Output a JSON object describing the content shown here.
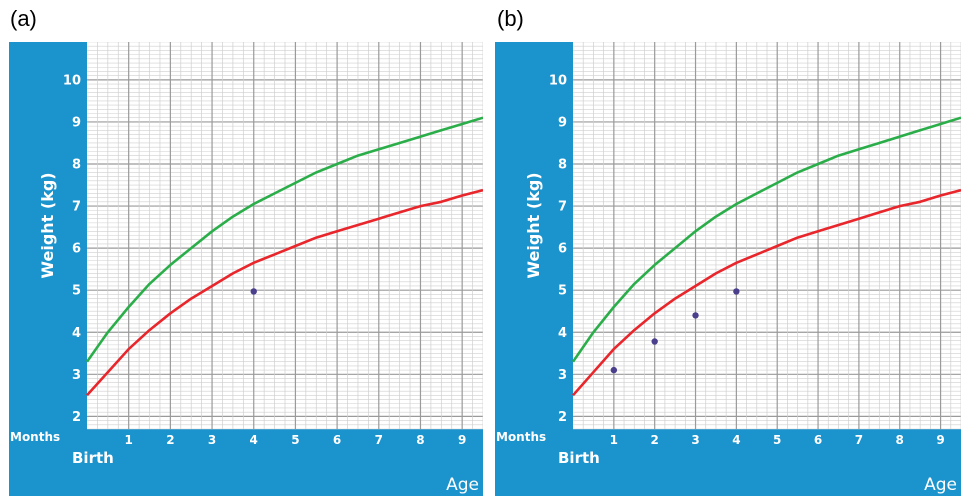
{
  "panels": [
    {
      "label": "(a)",
      "y_axis_label": "Weight (kg)",
      "months_label": "Months",
      "birth_label": "Birth",
      "age_label": "Age",
      "colors": {
        "frame": "#1b93cc",
        "green": "#2bae4a",
        "red": "#e8262b",
        "point": "#4a3f8c"
      }
    },
    {
      "label": "(b)",
      "y_axis_label": "Weight (kg)",
      "months_label": "Months",
      "birth_label": "Birth",
      "age_label": "Age",
      "colors": {
        "frame": "#1b93cc",
        "green": "#2bae4a",
        "red": "#e8262b",
        "point": "#4a3f8c"
      }
    }
  ],
  "chart_data": [
    {
      "type": "line",
      "panel": "a",
      "xlabel": "Age",
      "ylabel": "Weight (kg)",
      "xlim": [
        0,
        9.5
      ],
      "ylim": [
        1.7,
        10.9
      ],
      "x_ticks": [
        "1",
        "2",
        "3",
        "4",
        "5",
        "6",
        "7",
        "8",
        "9"
      ],
      "y_ticks": [
        "2",
        "3",
        "4",
        "5",
        "6",
        "7",
        "8",
        "9",
        "10"
      ],
      "grid": true,
      "series": [
        {
          "color": "green",
          "x": [
            0,
            0.5,
            1,
            1.5,
            2,
            2.5,
            3,
            3.5,
            4,
            4.5,
            5,
            5.5,
            6,
            6.5,
            7,
            7.5,
            8,
            8.5,
            9,
            9.5
          ],
          "values": [
            3.3,
            4.0,
            4.6,
            5.15,
            5.6,
            6.0,
            6.4,
            6.75,
            7.05,
            7.3,
            7.55,
            7.8,
            8.0,
            8.2,
            8.35,
            8.5,
            8.65,
            8.8,
            8.95,
            9.1
          ]
        },
        {
          "color": "red",
          "x": [
            0,
            0.5,
            1,
            1.5,
            2,
            2.5,
            3,
            3.5,
            4,
            4.5,
            5,
            5.5,
            6,
            6.5,
            7,
            7.5,
            8,
            8.5,
            9,
            9.5
          ],
          "values": [
            2.5,
            3.05,
            3.6,
            4.05,
            4.45,
            4.8,
            5.1,
            5.4,
            5.65,
            5.85,
            6.05,
            6.25,
            6.4,
            6.55,
            6.7,
            6.85,
            7.0,
            7.1,
            7.25,
            7.38
          ]
        }
      ],
      "points": [
        {
          "x": 4,
          "y": 4.97
        }
      ]
    },
    {
      "type": "line",
      "panel": "b",
      "xlabel": "Age",
      "ylabel": "Weight (kg)",
      "xlim": [
        0,
        9.5
      ],
      "ylim": [
        1.7,
        10.9
      ],
      "x_ticks": [
        "1",
        "2",
        "3",
        "4",
        "5",
        "6",
        "7",
        "8",
        "9"
      ],
      "y_ticks": [
        "2",
        "3",
        "4",
        "5",
        "6",
        "7",
        "8",
        "9",
        "10"
      ],
      "grid": true,
      "series": [
        {
          "color": "green",
          "x": [
            0,
            0.5,
            1,
            1.5,
            2,
            2.5,
            3,
            3.5,
            4,
            4.5,
            5,
            5.5,
            6,
            6.5,
            7,
            7.5,
            8,
            8.5,
            9,
            9.5
          ],
          "values": [
            3.3,
            4.0,
            4.6,
            5.15,
            5.6,
            6.0,
            6.4,
            6.75,
            7.05,
            7.3,
            7.55,
            7.8,
            8.0,
            8.2,
            8.35,
            8.5,
            8.65,
            8.8,
            8.95,
            9.1
          ]
        },
        {
          "color": "red",
          "x": [
            0,
            0.5,
            1,
            1.5,
            2,
            2.5,
            3,
            3.5,
            4,
            4.5,
            5,
            5.5,
            6,
            6.5,
            7,
            7.5,
            8,
            8.5,
            9,
            9.5
          ],
          "values": [
            2.5,
            3.05,
            3.6,
            4.05,
            4.45,
            4.8,
            5.1,
            5.4,
            5.65,
            5.85,
            6.05,
            6.25,
            6.4,
            6.55,
            6.7,
            6.85,
            7.0,
            7.1,
            7.25,
            7.38
          ]
        }
      ],
      "points": [
        {
          "x": 1,
          "y": 3.1
        },
        {
          "x": 2,
          "y": 3.78
        },
        {
          "x": 3,
          "y": 4.4
        },
        {
          "x": 4,
          "y": 4.97
        }
      ]
    }
  ]
}
